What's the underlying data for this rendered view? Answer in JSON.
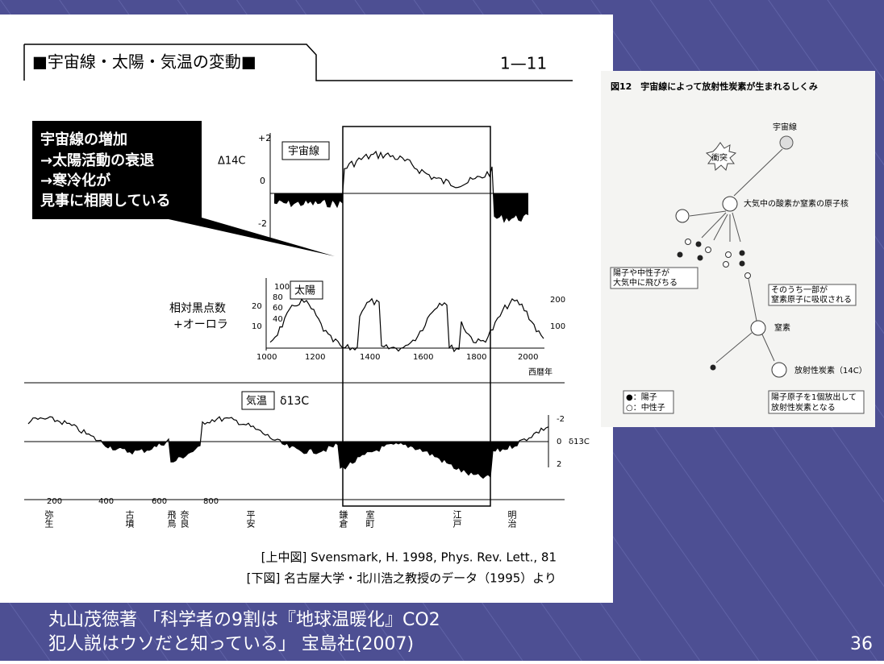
{
  "left_figure": {
    "title": "■宇宙線・太陽・気温の変動■",
    "figure_number": "1—11",
    "callout_lines": [
      "宇宙線の増加",
      "→太陽活動の衰退",
      "→寒冷化が",
      "見事に相関している"
    ],
    "cosmic_ray_panel": {
      "label": "宇宙線",
      "axis_label": "Δ14C",
      "yticks": [
        "+2",
        "0",
        "-2"
      ]
    },
    "sun_panel": {
      "label": "太陽",
      "axis_label_lines": [
        "相対黒点数",
        "+オーロラ"
      ],
      "left_ticks_inner": [
        "100",
        "80",
        "60",
        "40"
      ],
      "left_ticks_outer": [
        "20",
        "10"
      ],
      "right_ticks": [
        "200",
        "100"
      ],
      "xticks": [
        "1000",
        "1200",
        "1400",
        "1600",
        "1800",
        "2000"
      ],
      "x_unit": "西暦年"
    },
    "temperature_panel": {
      "label": "気温",
      "axis_label": "δ13C",
      "right_ticks": [
        "-2",
        "0",
        "2"
      ],
      "xticks": [
        "200",
        "400",
        "600",
        "800"
      ],
      "eras": [
        "弥生",
        "古墳",
        "飛鳥",
        "奈良",
        "平安",
        "鎌倉",
        "室町",
        "江戸",
        "明治"
      ]
    },
    "sources": [
      "[上中図] Svensmark, H. 1998, Phys. Rev. Lett., 81",
      "[下図] 名古屋大学・北川浩之教授のデータ（1995）より"
    ]
  },
  "right_figure": {
    "title": "図12　宇宙線によって放射性炭素が生まれるしくみ",
    "cosmic_ray": "宇宙線",
    "collision": "衝突",
    "nucleus": "大気中の酸素か窒素の原子核",
    "scatter_lines": [
      "陽子や中性子が",
      "大気中に飛びちる"
    ],
    "absorb_lines": [
      "そのうち一部が",
      "窒素原子に吸収される"
    ],
    "nitrogen": "窒素",
    "carbon14": "放射性炭素（14C）",
    "legend": [
      "●：陽子",
      "○：中性子"
    ],
    "emit_lines": [
      "陽子原子を1個放出して",
      "放射性炭素となる"
    ]
  },
  "caption_lines": [
    "丸山茂徳著 「科学者の9割は『地球温暖化』CO2",
    "犯人説はウソだと知っている」 宝島社(2007)"
  ],
  "page_number": "36"
}
